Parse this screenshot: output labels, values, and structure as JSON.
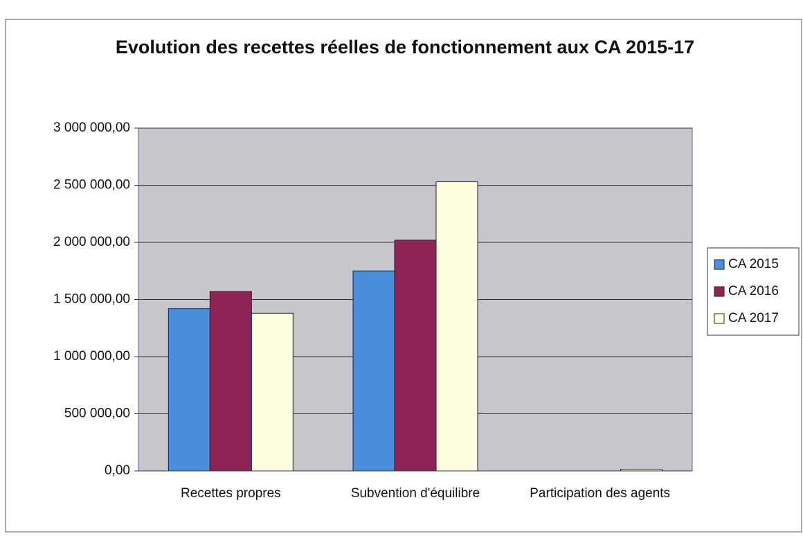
{
  "chart_data": {
    "type": "bar",
    "title": "Evolution des recettes réelles de fonctionnement aux CA 2015-17",
    "categories": [
      "Recettes propres",
      "Subvention d'équilibre",
      "Participation des agents"
    ],
    "series": [
      {
        "name": "CA 2015",
        "color": "#4a8fdc",
        "values": [
          1420000,
          1750000,
          0
        ]
      },
      {
        "name": "CA 2016",
        "color": "#8e2456",
        "values": [
          1570000,
          2020000,
          0
        ]
      },
      {
        "name": "CA 2017",
        "color": "#ffffe2",
        "values": [
          1380000,
          2530000,
          15000
        ]
      }
    ],
    "ylim": [
      0,
      3000000
    ],
    "yticks": [
      {
        "value": 0,
        "label": "0,00"
      },
      {
        "value": 500000,
        "label": "500 000,00"
      },
      {
        "value": 1000000,
        "label": "1 000 000,00"
      },
      {
        "value": 1500000,
        "label": "1 500 000,00"
      },
      {
        "value": 2000000,
        "label": "2 000 000,00"
      },
      {
        "value": 2500000,
        "label": "2 500 000,00"
      },
      {
        "value": 3000000,
        "label": "3 000 000,00"
      }
    ],
    "grid": true,
    "legend": "right"
  }
}
